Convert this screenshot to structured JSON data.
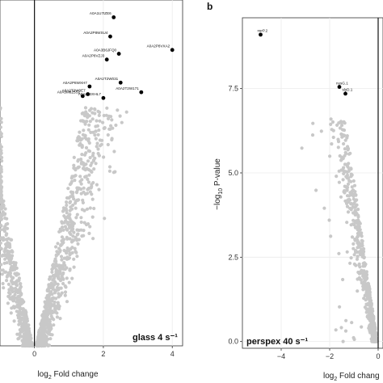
{
  "chart_data": [
    {
      "id": "a",
      "type": "scatter",
      "panel_letter": "",
      "annotation": "glass 4 s⁻¹",
      "xlabel_parts": [
        "log",
        "2",
        " Fold change"
      ],
      "ylabel_parts": [],
      "xlim": [
        -1.0,
        4.3
      ],
      "ylim": [
        0.0,
        9.0
      ],
      "xticks": [
        {
          "v": 0,
          "label": "0"
        },
        {
          "v": 2,
          "label": "2"
        },
        {
          "v": 4,
          "label": "4"
        }
      ],
      "yticks": [],
      "vline": 0,
      "point_color": "#c8c8c8",
      "highlight_color": "#000000",
      "highlighted": [
        {
          "x": 2.3,
          "y": 8.55,
          "label": "A0A1U7IZE6"
        },
        {
          "x": 2.2,
          "y": 8.05,
          "label": "A0A2P8WSU4"
        },
        {
          "x": 4.0,
          "y": 7.7,
          "label": "A0A2P8VXA2"
        },
        {
          "x": 2.45,
          "y": 7.6,
          "label": "A0A3B6JFQ0"
        },
        {
          "x": 2.1,
          "y": 7.45,
          "label": "A0A2P8VZJ3"
        },
        {
          "x": 2.5,
          "y": 6.85,
          "label": "A0A2T2W031"
        },
        {
          "x": 1.6,
          "y": 6.75,
          "label": "A0A2P8WXH7"
        },
        {
          "x": 1.55,
          "y": 6.55,
          "label": "A0A2T2W0E7"
        },
        {
          "x": 3.1,
          "y": 6.6,
          "label": "A0A2T2W171"
        },
        {
          "x": 1.4,
          "y": 6.5,
          "label": "A0A3M8Z5S2"
        },
        {
          "x": 2.0,
          "y": 6.45,
          "label": "A0A2Z3XHL7"
        }
      ]
    },
    {
      "id": "b",
      "type": "scatter",
      "panel_letter": "b",
      "annotation": "perspex 40 s⁻¹",
      "xlabel_parts": [
        "log",
        "2",
        " Fold chang"
      ],
      "ylabel_parts": [
        "−log",
        "10",
        " P-value"
      ],
      "xlim": [
        -5.6,
        0.2
      ],
      "ylim": [
        -0.2,
        9.6
      ],
      "xticks": [
        {
          "v": -4,
          "label": "−4"
        },
        {
          "v": -2,
          "label": "−2"
        },
        {
          "v": 0,
          "label": "0"
        }
      ],
      "yticks": [
        {
          "v": 0,
          "label": "0.0"
        },
        {
          "v": 2.5,
          "label": "2.5"
        },
        {
          "v": 5,
          "label": "5.0"
        },
        {
          "v": 7.5,
          "label": "7.5"
        }
      ],
      "vline": 0,
      "point_color": "#c8c8c8",
      "highlight_color": "#000000",
      "highlighted": [
        {
          "x": -4.85,
          "y": 9.1,
          "label": "nsrP.2"
        },
        {
          "x": -1.6,
          "y": 7.55,
          "label": "nusG.1"
        },
        {
          "x": -1.35,
          "y": 7.35,
          "label": "slyD.1"
        }
      ]
    }
  ]
}
